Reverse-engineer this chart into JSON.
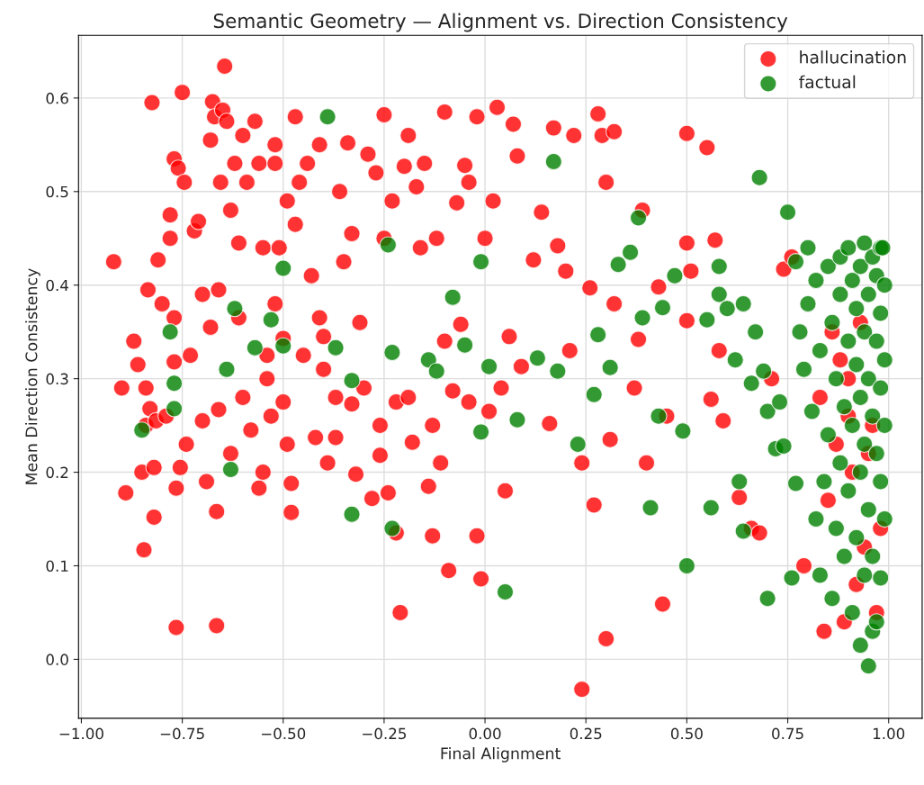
{
  "chart_data": {
    "type": "scatter",
    "title": "Semantic Geometry — Alignment vs. Direction Consistency",
    "xlabel": "Final Alignment",
    "ylabel": "Mean Direction Consistency",
    "xlim": [
      -1.007,
      1.083
    ],
    "ylim": [
      -0.063,
      0.667
    ],
    "xticks": [
      {
        "value": -1,
        "label": "−1.00"
      },
      {
        "value": -0.75,
        "label": "−0.75"
      },
      {
        "value": -0.5,
        "label": "−0.50"
      },
      {
        "value": -0.25,
        "label": "−0.25"
      },
      {
        "value": 0,
        "label": "0.00"
      },
      {
        "value": 0.25,
        "label": "0.25"
      },
      {
        "value": 0.5,
        "label": "0.50"
      },
      {
        "value": 0.75,
        "label": "0.75"
      },
      {
        "value": 1,
        "label": "1.00"
      }
    ],
    "yticks": [
      {
        "value": 0,
        "label": "0.0"
      },
      {
        "value": 0.1,
        "label": "0.1"
      },
      {
        "value": 0.2,
        "label": "0.2"
      },
      {
        "value": 0.3,
        "label": "0.3"
      },
      {
        "value": 0.4,
        "label": "0.4"
      },
      {
        "value": 0.5,
        "label": "0.5"
      },
      {
        "value": 0.6,
        "label": "0.6"
      }
    ],
    "grid": true,
    "legend": "top right",
    "marker": "circle",
    "series": [
      {
        "name": "hallucination",
        "color": "#ff0000",
        "x": [
          -0.92,
          -0.9,
          -0.89,
          -0.87,
          -0.86,
          -0.85,
          -0.845,
          -0.84,
          -0.84,
          -0.835,
          -0.83,
          -0.825,
          -0.82,
          -0.82,
          -0.815,
          -0.81,
          -0.8,
          -0.79,
          -0.78,
          -0.78,
          -0.77,
          -0.77,
          -0.77,
          -0.765,
          -0.765,
          -0.76,
          -0.755,
          -0.75,
          -0.745,
          -0.74,
          -0.73,
          -0.72,
          -0.71,
          -0.7,
          -0.7,
          -0.69,
          -0.68,
          -0.68,
          -0.675,
          -0.67,
          -0.665,
          -0.665,
          -0.66,
          -0.66,
          -0.655,
          -0.65,
          -0.645,
          -0.64,
          -0.63,
          -0.63,
          -0.62,
          -0.61,
          -0.61,
          -0.6,
          -0.6,
          -0.59,
          -0.58,
          -0.57,
          -0.56,
          -0.56,
          -0.55,
          -0.55,
          -0.54,
          -0.54,
          -0.53,
          -0.52,
          -0.52,
          -0.52,
          -0.51,
          -0.5,
          -0.5,
          -0.49,
          -0.49,
          -0.48,
          -0.48,
          -0.47,
          -0.47,
          -0.46,
          -0.45,
          -0.44,
          -0.43,
          -0.42,
          -0.41,
          -0.41,
          -0.4,
          -0.4,
          -0.39,
          -0.37,
          -0.37,
          -0.36,
          -0.35,
          -0.34,
          -0.33,
          -0.33,
          -0.32,
          -0.31,
          -0.3,
          -0.29,
          -0.28,
          -0.27,
          -0.26,
          -0.26,
          -0.25,
          -0.25,
          -0.24,
          -0.23,
          -0.22,
          -0.22,
          -0.21,
          -0.2,
          -0.19,
          -0.19,
          -0.18,
          -0.17,
          -0.16,
          -0.15,
          -0.14,
          -0.13,
          -0.13,
          -0.12,
          -0.11,
          -0.1,
          -0.1,
          -0.09,
          -0.08,
          -0.07,
          -0.06,
          -0.05,
          -0.04,
          -0.04,
          -0.02,
          -0.02,
          -0.01,
          0.0,
          0.01,
          0.02,
          0.03,
          0.04,
          0.05,
          0.06,
          0.07,
          0.08,
          0.09,
          0.12,
          0.14,
          0.16,
          0.17,
          0.18,
          0.2,
          0.21,
          0.22,
          0.24,
          0.24,
          0.26,
          0.27,
          0.28,
          0.29,
          0.3,
          0.3,
          0.31,
          0.32,
          0.32,
          0.37,
          0.38,
          0.39,
          0.4,
          0.43,
          0.44,
          0.45,
          0.5,
          0.5,
          0.5,
          0.51,
          0.55,
          0.56,
          0.57,
          0.58,
          0.59,
          0.63,
          0.66,
          0.68,
          0.71,
          0.74,
          0.76,
          0.79,
          0.83,
          0.84,
          0.85,
          0.86,
          0.87,
          0.88,
          0.89,
          0.9,
          0.91,
          0.92,
          0.93,
          0.94,
          0.95,
          0.96,
          0.97,
          0.98,
          0.9
        ],
        "values": [
          0.425,
          0.29,
          0.178,
          0.34,
          0.315,
          0.2,
          0.117,
          0.29,
          0.25,
          0.395,
          0.268,
          0.595,
          0.152,
          0.205,
          0.255,
          0.427,
          0.38,
          0.26,
          0.475,
          0.45,
          0.365,
          0.318,
          0.535,
          0.183,
          0.034,
          0.525,
          0.205,
          0.606,
          0.51,
          0.23,
          0.325,
          0.458,
          0.468,
          0.39,
          0.255,
          0.19,
          0.355,
          0.555,
          0.596,
          0.58,
          0.036,
          0.158,
          0.267,
          0.395,
          0.51,
          0.587,
          0.634,
          0.575,
          0.48,
          0.22,
          0.53,
          0.365,
          0.445,
          0.56,
          0.28,
          0.51,
          0.245,
          0.575,
          0.53,
          0.183,
          0.44,
          0.2,
          0.3,
          0.325,
          0.26,
          0.53,
          0.55,
          0.38,
          0.44,
          0.275,
          0.343,
          0.49,
          0.23,
          0.188,
          0.157,
          0.465,
          0.58,
          0.51,
          0.325,
          0.53,
          0.41,
          0.237,
          0.55,
          0.365,
          0.31,
          0.345,
          0.21,
          0.237,
          0.28,
          0.5,
          0.425,
          0.552,
          0.455,
          0.273,
          0.198,
          0.36,
          0.29,
          0.54,
          0.172,
          0.52,
          0.218,
          0.25,
          0.582,
          0.45,
          0.178,
          0.49,
          0.275,
          0.135,
          0.05,
          0.527,
          0.56,
          0.28,
          0.232,
          0.505,
          0.44,
          0.53,
          0.185,
          0.25,
          0.132,
          0.45,
          0.21,
          0.585,
          0.34,
          0.095,
          0.287,
          0.488,
          0.358,
          0.528,
          0.51,
          0.275,
          0.58,
          0.132,
          0.086,
          0.45,
          0.265,
          0.49,
          0.59,
          0.29,
          0.18,
          0.345,
          0.572,
          0.538,
          0.313,
          0.427,
          0.478,
          0.252,
          0.568,
          0.442,
          0.415,
          0.33,
          0.56,
          -0.032,
          0.21,
          0.397,
          0.165,
          0.583,
          0.56,
          0.51,
          0.022,
          0.235,
          0.564,
          0.38,
          0.29,
          0.342,
          0.48,
          0.21,
          0.398,
          0.059,
          0.26,
          0.445,
          0.562,
          0.362,
          0.415,
          0.547,
          0.278,
          0.448,
          0.33,
          0.255,
          0.173,
          0.14,
          0.135,
          0.3,
          0.417,
          0.43,
          0.1,
          0.28,
          0.03,
          0.17,
          0.35,
          0.23,
          0.32,
          0.04,
          0.26,
          0.2,
          0.08,
          0.36,
          0.12,
          0.22,
          0.25,
          0.05,
          0.14,
          0.3
        ]
      },
      {
        "name": "factual",
        "color": "#008000",
        "x": [
          -0.85,
          -0.78,
          -0.77,
          -0.77,
          -0.64,
          -0.63,
          -0.62,
          -0.57,
          -0.53,
          -0.5,
          -0.5,
          -0.39,
          -0.37,
          -0.33,
          -0.33,
          -0.24,
          -0.23,
          -0.23,
          -0.14,
          -0.12,
          -0.08,
          -0.05,
          -0.01,
          -0.01,
          0.01,
          0.05,
          0.08,
          0.13,
          0.17,
          0.18,
          0.23,
          0.27,
          0.28,
          0.31,
          0.33,
          0.36,
          0.38,
          0.39,
          0.41,
          0.43,
          0.44,
          0.47,
          0.49,
          0.5,
          0.55,
          0.56,
          0.58,
          0.58,
          0.6,
          0.62,
          0.63,
          0.64,
          0.64,
          0.66,
          0.67,
          0.68,
          0.69,
          0.7,
          0.7,
          0.72,
          0.73,
          0.74,
          0.75,
          0.76,
          0.77,
          0.77,
          0.78,
          0.79,
          0.8,
          0.8,
          0.81,
          0.82,
          0.82,
          0.83,
          0.83,
          0.84,
          0.85,
          0.85,
          0.86,
          0.86,
          0.87,
          0.87,
          0.88,
          0.88,
          0.88,
          0.89,
          0.89,
          0.9,
          0.9,
          0.9,
          0.91,
          0.91,
          0.91,
          0.92,
          0.92,
          0.92,
          0.93,
          0.93,
          0.93,
          0.93,
          0.94,
          0.94,
          0.94,
          0.94,
          0.95,
          0.95,
          0.95,
          0.95,
          0.96,
          0.96,
          0.96,
          0.96,
          0.97,
          0.97,
          0.97,
          0.97,
          0.98,
          0.98,
          0.98,
          0.98,
          0.98,
          0.99,
          0.99,
          0.99,
          0.99,
          0.985
        ],
        "values": [
          0.245,
          0.35,
          0.295,
          0.268,
          0.31,
          0.203,
          0.375,
          0.333,
          0.363,
          0.418,
          0.335,
          0.58,
          0.333,
          0.155,
          0.298,
          0.443,
          0.328,
          0.14,
          0.32,
          0.308,
          0.387,
          0.336,
          0.425,
          0.243,
          0.313,
          0.072,
          0.256,
          0.322,
          0.532,
          0.308,
          0.23,
          0.283,
          0.347,
          0.312,
          0.422,
          0.435,
          0.472,
          0.365,
          0.162,
          0.26,
          0.376,
          0.41,
          0.244,
          0.1,
          0.363,
          0.162,
          0.42,
          0.39,
          0.375,
          0.32,
          0.19,
          0.38,
          0.137,
          0.295,
          0.35,
          0.515,
          0.308,
          0.065,
          0.265,
          0.225,
          0.275,
          0.228,
          0.478,
          0.087,
          0.188,
          0.425,
          0.35,
          0.31,
          0.44,
          0.38,
          0.265,
          0.15,
          0.405,
          0.33,
          0.09,
          0.19,
          0.42,
          0.24,
          0.36,
          0.065,
          0.3,
          0.14,
          0.43,
          0.39,
          0.21,
          0.27,
          0.11,
          0.34,
          0.44,
          0.18,
          0.405,
          0.25,
          0.05,
          0.375,
          0.315,
          0.13,
          0.42,
          0.28,
          0.015,
          0.2,
          0.445,
          0.35,
          0.23,
          0.09,
          0.39,
          0.3,
          0.16,
          -0.007,
          0.43,
          0.26,
          0.11,
          0.03,
          0.41,
          0.34,
          0.22,
          0.04,
          0.44,
          0.37,
          0.29,
          0.19,
          0.087,
          0.4,
          0.32,
          0.25,
          0.15,
          0.44
        ]
      }
    ]
  }
}
